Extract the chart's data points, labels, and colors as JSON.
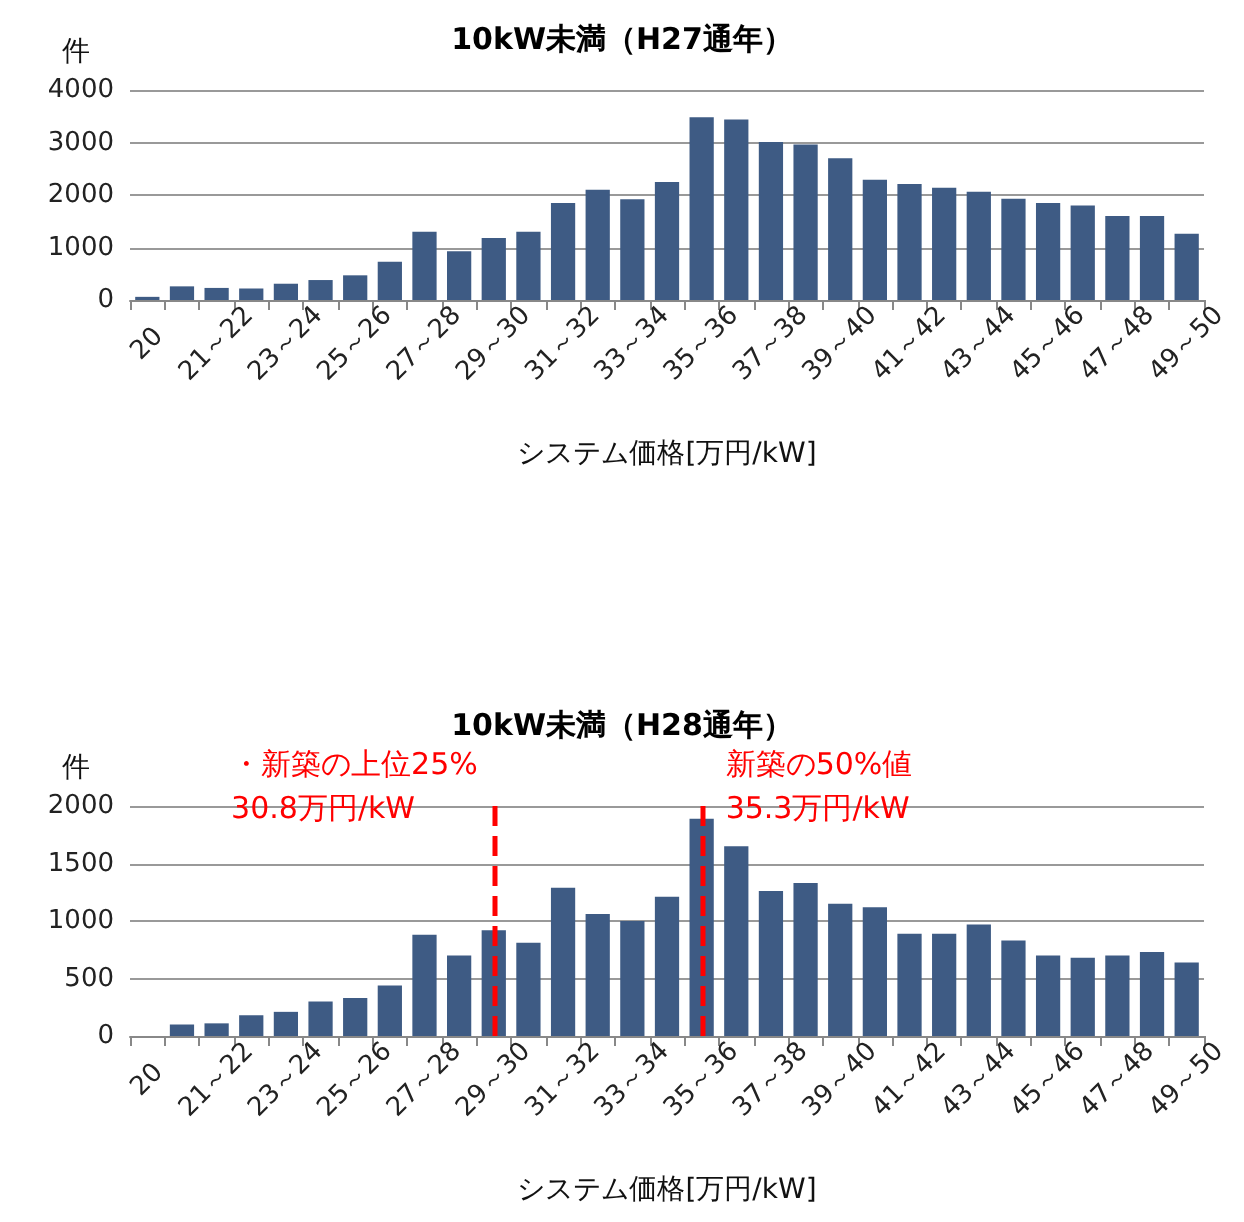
{
  "chart_data": [
    {
      "type": "bar",
      "title": "10kW未満（H27通年）",
      "ylabel": "件",
      "xlabel": "システム価格[万円/kW]",
      "categories": [
        "20",
        null,
        "21～22",
        null,
        "23～24",
        null,
        "25～26",
        null,
        "27～28",
        null,
        "29～30",
        null,
        "31～32",
        null,
        "33～34",
        null,
        "35～36",
        null,
        "37～38",
        null,
        "39～40",
        null,
        "41～42",
        null,
        "43～44",
        null,
        "45～46",
        null,
        "47～48",
        null,
        "49～50"
      ],
      "values": [
        60,
        260,
        230,
        220,
        310,
        380,
        470,
        730,
        1300,
        930,
        1180,
        1300,
        1850,
        2100,
        1920,
        2250,
        3480,
        3440,
        3010,
        2960,
        2700,
        2290,
        2210,
        2140,
        2060,
        1930,
        1850,
        1800,
        1600,
        1600,
        1260
      ],
      "color": "#3e5b84",
      "ylim": [
        0,
        4000
      ],
      "yticks": [
        0,
        1000,
        2000,
        3000,
        4000
      ],
      "grid": "y"
    },
    {
      "type": "bar",
      "title": "10kW未満（H28通年）",
      "ylabel": "件",
      "xlabel": "システム価格[万円/kW]",
      "categories": [
        "20",
        null,
        "21～22",
        null,
        "23～24",
        null,
        "25～26",
        null,
        "27～28",
        null,
        "29～30",
        null,
        "31～32",
        null,
        "33～34",
        null,
        "35～36",
        null,
        "37～38",
        null,
        "39～40",
        null,
        "41～42",
        null,
        "43～44",
        null,
        "45～46",
        null,
        "47～48",
        null,
        "49～50"
      ],
      "values": [
        0,
        100,
        110,
        180,
        210,
        300,
        330,
        440,
        880,
        700,
        920,
        810,
        1290,
        1060,
        1000,
        1210,
        1890,
        1650,
        1260,
        1330,
        1150,
        1120,
        890,
        890,
        970,
        830,
        700,
        680,
        700,
        730,
        640
      ],
      "color": "#3e5b84",
      "ylim": [
        0,
        2000
      ],
      "yticks": [
        0,
        500,
        1000,
        1500,
        2000
      ],
      "grid": "y",
      "ref_lines": [
        {
          "axis": "x",
          "value": "29～30",
          "label": "・新築の上位25%\n30.8万円/kW",
          "color": "#ff0000",
          "line_style": "dashed"
        },
        {
          "axis": "x",
          "value": "35～36",
          "label": "新築の50%値\n35.3万円/kW",
          "color": "#ff0000",
          "line_style": "dashed"
        }
      ]
    }
  ]
}
